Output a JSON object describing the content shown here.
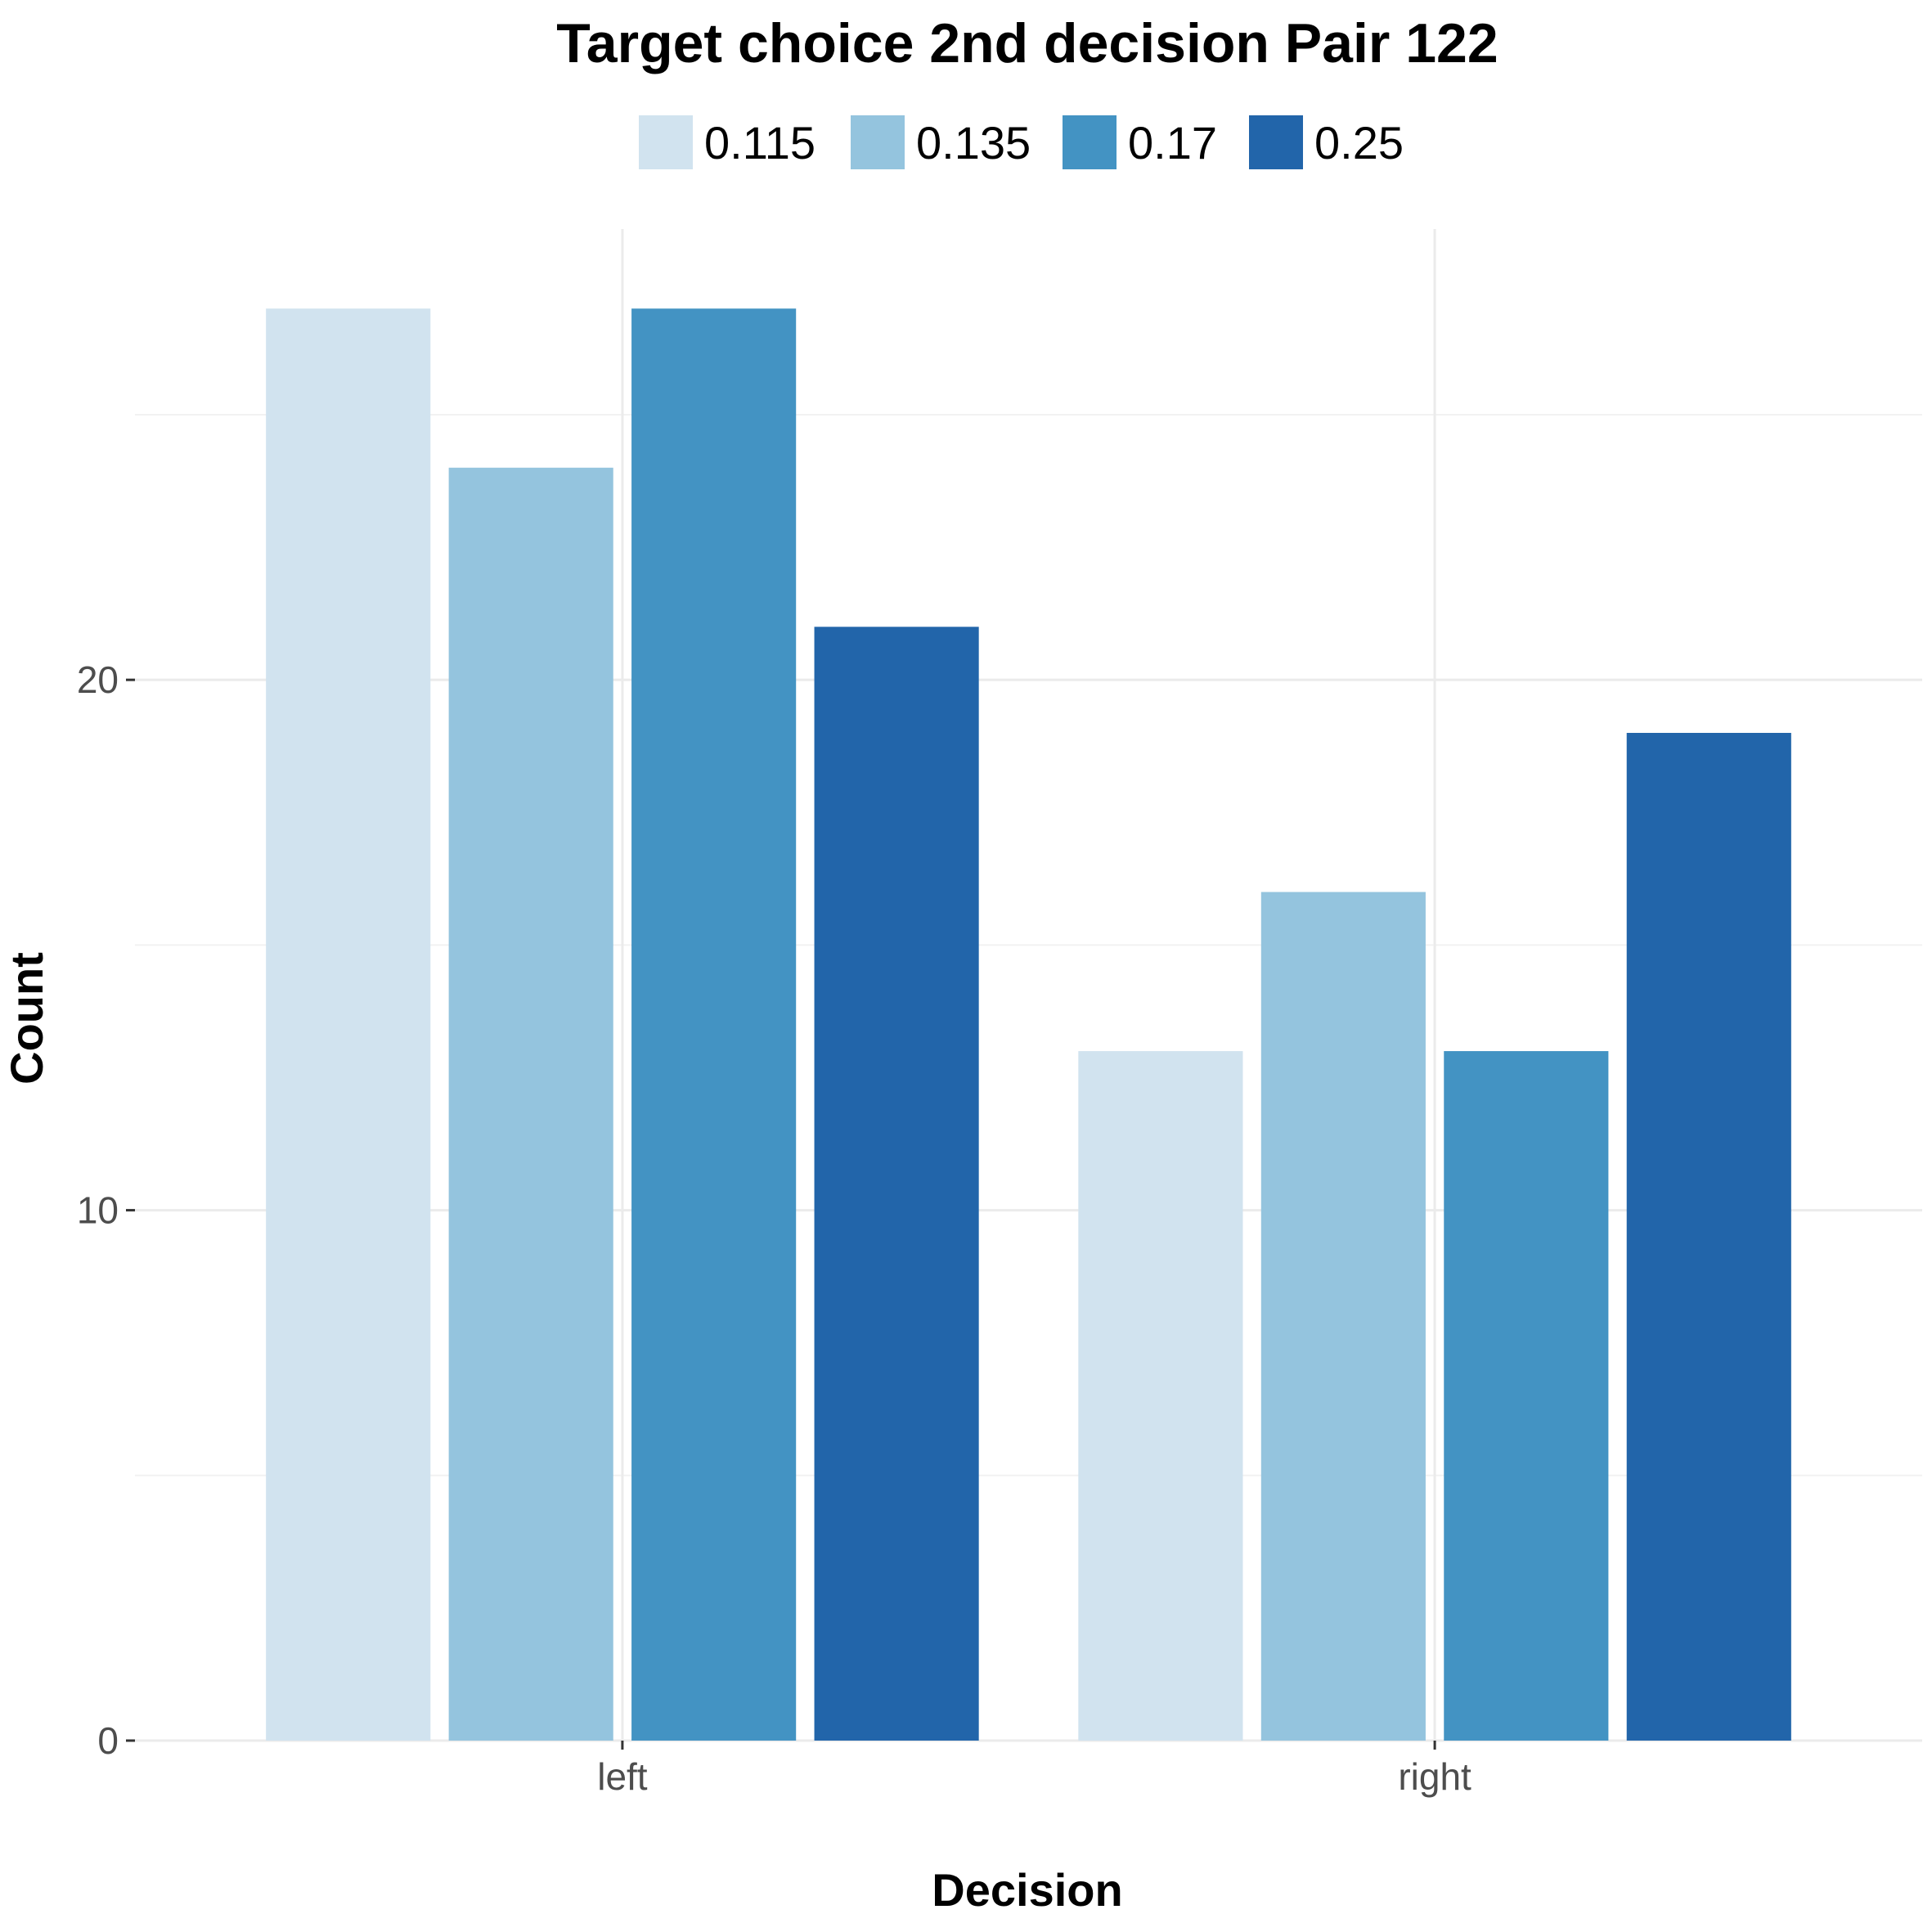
{
  "chart_data": {
    "type": "bar",
    "title": "Target choice 2nd decision Pair 122",
    "xlabel": "Decision",
    "ylabel": "Count",
    "categories": [
      "left",
      "right"
    ],
    "series": [
      {
        "name": "0.115",
        "color": "#d1e3ef",
        "values": [
          27,
          13
        ]
      },
      {
        "name": "0.135",
        "color": "#94c4de",
        "values": [
          24,
          16
        ]
      },
      {
        "name": "0.17",
        "color": "#4393c3",
        "values": [
          27,
          13
        ]
      },
      {
        "name": "0.25",
        "color": "#2265aa",
        "values": [
          21,
          19
        ]
      }
    ],
    "ylim": [
      0,
      28.5
    ],
    "yticks": [
      0,
      10,
      20
    ],
    "yminor": [
      5,
      15,
      25
    ],
    "legend_position": "top",
    "grid": true
  }
}
